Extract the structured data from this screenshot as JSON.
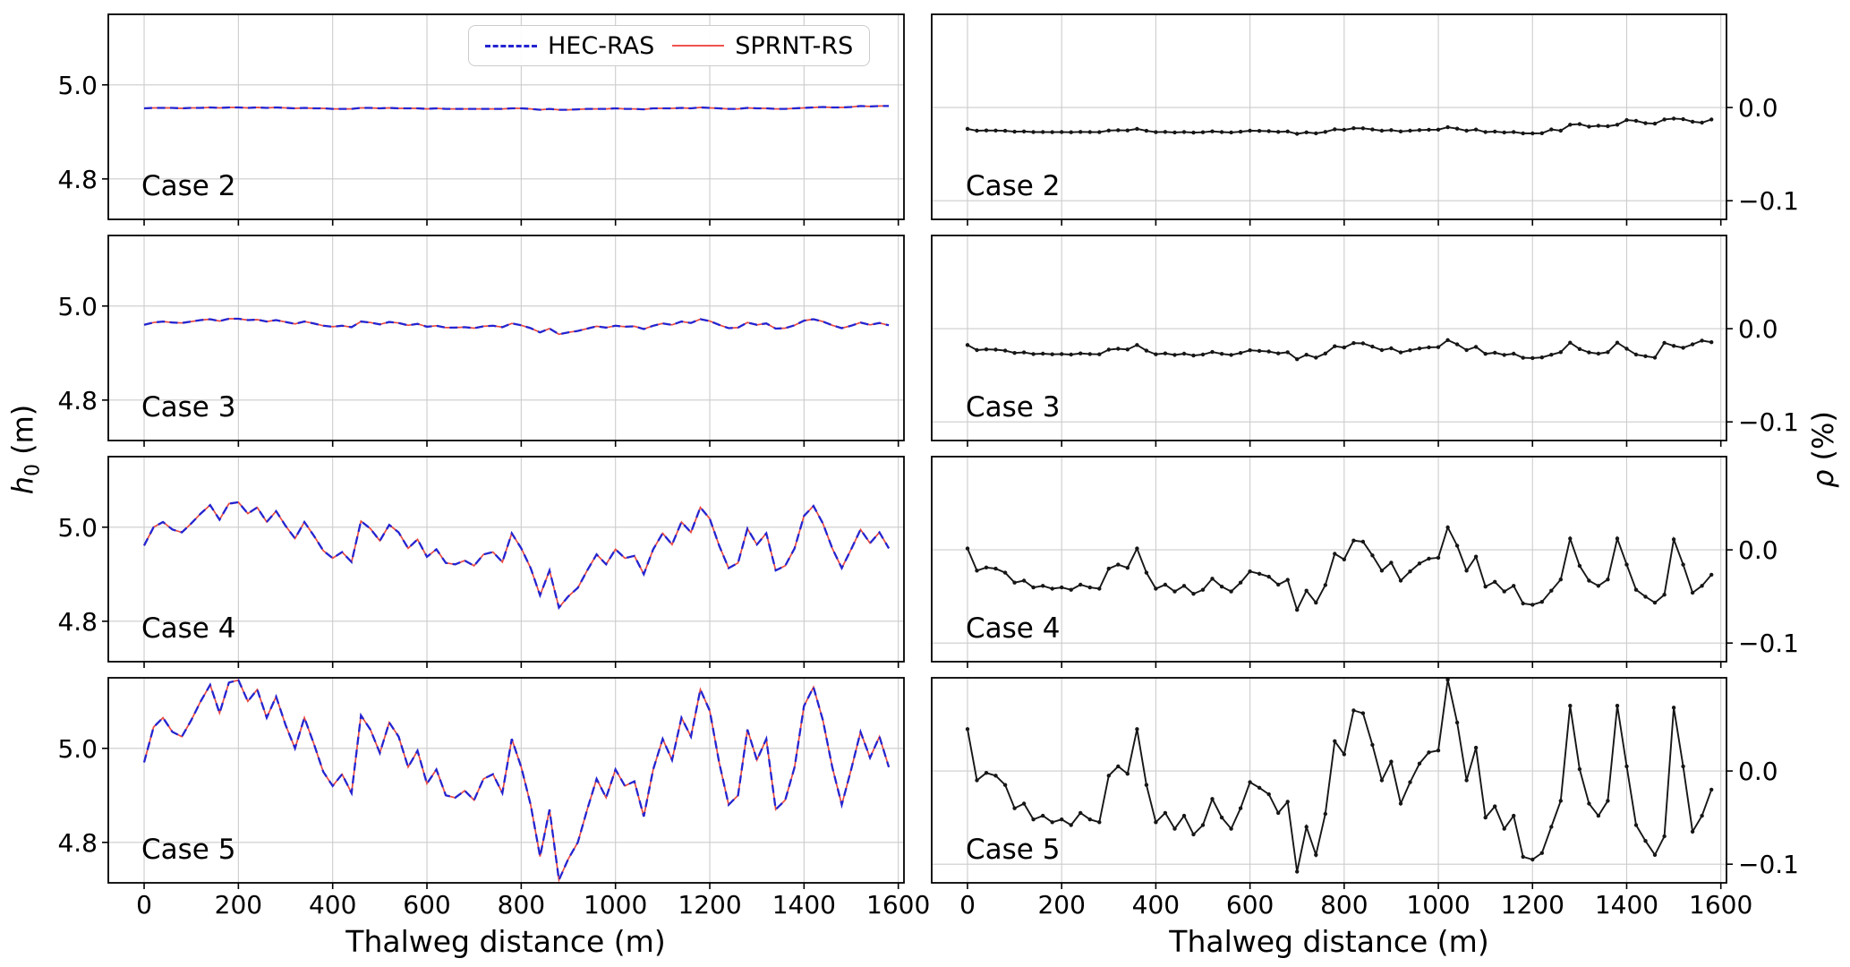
{
  "figure": {
    "background": "#ffffff",
    "ylabel_left": {
      "var": "h",
      "sub": "0",
      "unit": " (m)"
    },
    "ylabel_right": {
      "var": "ρ",
      "unit": " (%)"
    },
    "colors": {
      "hecras": "#2424d0",
      "sprnt": "#e84a42",
      "rho_line": "#161616",
      "grid": "#cccccc",
      "spine": "#000000",
      "text": "#000000"
    }
  },
  "chart_data": {
    "type": "line",
    "layout": "4 rows (Case 2..Case 5) x 2 columns; left column water depth h0 vs thalweg distance (HEC-RAS dashed blue overlapping SPRNT-RS solid red); right column relative difference rho (%) in black with point markers; grid on; legend top-right of first left subplot",
    "xlabel": "Thalweg distance (m)",
    "x_ticks": [
      0,
      200,
      400,
      600,
      800,
      1000,
      1200,
      1400,
      1600
    ],
    "xlim": [
      -76,
      1612
    ],
    "x_m": [
      0,
      20,
      40,
      60,
      80,
      100,
      120,
      140,
      160,
      180,
      200,
      220,
      240,
      260,
      280,
      300,
      320,
      340,
      360,
      380,
      400,
      420,
      440,
      460,
      480,
      500,
      520,
      540,
      560,
      580,
      600,
      620,
      640,
      660,
      680,
      700,
      720,
      740,
      760,
      780,
      800,
      820,
      840,
      860,
      880,
      900,
      920,
      940,
      960,
      980,
      1000,
      1020,
      1040,
      1060,
      1080,
      1100,
      1120,
      1140,
      1160,
      1180,
      1200,
      1220,
      1240,
      1260,
      1280,
      1300,
      1320,
      1340,
      1360,
      1380,
      1400,
      1420,
      1440,
      1460,
      1480,
      1500,
      1520,
      1540,
      1560,
      1580
    ],
    "left": {
      "ylabel": "h0 (m)",
      "y_ticks": [
        5.0,
        4.8
      ],
      "ylim": [
        4.714,
        5.15
      ],
      "legend": [
        {
          "label": "HEC-RAS",
          "color": "#2424d0",
          "style": "dashed"
        },
        {
          "label": "SPRNT-RS",
          "color": "#e84a42",
          "style": "solid"
        }
      ],
      "note": "HEC-RAS and SPRNT-RS water-depth profiles overlap at plot scale; one h0 array per case drives both curves",
      "series": [
        {
          "case": "Case 2",
          "h0_m": [
            4.95,
            4.951,
            4.951,
            4.951,
            4.95,
            4.951,
            4.951,
            4.952,
            4.951,
            4.952,
            4.952,
            4.951,
            4.952,
            4.951,
            4.952,
            4.951,
            4.95,
            4.951,
            4.95,
            4.95,
            4.949,
            4.949,
            4.949,
            4.951,
            4.951,
            4.95,
            4.951,
            4.95,
            4.95,
            4.95,
            4.949,
            4.95,
            4.949,
            4.949,
            4.949,
            4.949,
            4.949,
            4.949,
            4.949,
            4.95,
            4.95,
            4.949,
            4.947,
            4.949,
            4.947,
            4.947,
            4.948,
            4.949,
            4.949,
            4.949,
            4.95,
            4.949,
            4.949,
            4.948,
            4.95,
            4.95,
            4.95,
            4.951,
            4.95,
            4.952,
            4.951,
            4.95,
            4.949,
            4.949,
            4.951,
            4.95,
            4.95,
            4.949,
            4.949,
            4.95,
            4.951,
            4.952,
            4.953,
            4.952,
            4.952,
            4.953,
            4.955,
            4.954,
            4.955,
            4.955
          ]
        },
        {
          "case": "Case 3",
          "h0_m": [
            4.96,
            4.965,
            4.967,
            4.965,
            4.964,
            4.967,
            4.97,
            4.972,
            4.968,
            4.973,
            4.973,
            4.97,
            4.971,
            4.967,
            4.97,
            4.966,
            4.962,
            4.967,
            4.963,
            4.958,
            4.956,
            4.958,
            4.955,
            4.967,
            4.965,
            4.961,
            4.966,
            4.964,
            4.959,
            4.962,
            4.956,
            4.958,
            4.954,
            4.954,
            4.955,
            4.953,
            4.957,
            4.958,
            4.955,
            4.963,
            4.959,
            4.953,
            4.944,
            4.952,
            4.94,
            4.944,
            4.947,
            4.952,
            4.957,
            4.954,
            4.958,
            4.956,
            4.957,
            4.951,
            4.958,
            4.963,
            4.96,
            4.967,
            4.964,
            4.972,
            4.968,
            4.96,
            4.953,
            4.954,
            4.965,
            4.96,
            4.963,
            4.952,
            4.953,
            4.959,
            4.969,
            4.972,
            4.967,
            4.959,
            4.953,
            4.958,
            4.965,
            4.96,
            4.964,
            4.959
          ]
        },
        {
          "case": "Case 4",
          "h0_m": [
            4.961,
            5.0,
            5.011,
            4.995,
            4.989,
            5.008,
            5.029,
            5.047,
            5.016,
            5.05,
            5.053,
            5.029,
            5.042,
            5.011,
            5.034,
            5.003,
            4.976,
            5.011,
            4.982,
            4.95,
            4.934,
            4.947,
            4.926,
            5.013,
            4.997,
            4.971,
            5.005,
            4.989,
            4.955,
            4.974,
            4.937,
            4.953,
            4.924,
            4.921,
            4.929,
            4.918,
            4.942,
            4.947,
            4.926,
            4.987,
            4.955,
            4.913,
            4.855,
            4.908,
            4.829,
            4.853,
            4.871,
            4.908,
            4.942,
            4.921,
            4.953,
            4.934,
            4.939,
            4.9,
            4.953,
            4.987,
            4.963,
            5.011,
            4.989,
            5.042,
            5.018,
            4.961,
            4.913,
            4.924,
            4.997,
            4.963,
            4.987,
            4.908,
            4.918,
            4.955,
            5.024,
            5.045,
            5.008,
            4.955,
            4.913,
            4.953,
            4.995,
            4.966,
            4.989,
            4.955
          ]
        },
        {
          "case": "Case 5",
          "h0_m": [
            4.97,
            5.045,
            5.065,
            5.035,
            5.025,
            5.06,
            5.1,
            5.135,
            5.075,
            5.14,
            5.145,
            5.1,
            5.125,
            5.065,
            5.11,
            5.05,
            5.0,
            5.065,
            5.01,
            4.95,
            4.92,
            4.945,
            4.905,
            5.07,
            5.04,
            4.99,
            5.055,
            5.025,
            4.96,
            4.995,
            4.925,
            4.955,
            4.9,
            4.895,
            4.91,
            4.89,
            4.935,
            4.945,
            4.905,
            5.02,
            4.96,
            4.88,
            4.77,
            4.87,
            4.72,
            4.765,
            4.8,
            4.87,
            4.935,
            4.895,
            4.955,
            4.92,
            4.93,
            4.855,
            4.955,
            5.02,
            4.975,
            5.065,
            5.025,
            5.125,
            5.08,
            4.97,
            4.88,
            4.9,
            5.04,
            4.975,
            5.02,
            4.87,
            4.89,
            4.96,
            5.09,
            5.13,
            5.06,
            4.96,
            4.88,
            4.955,
            5.035,
            4.98,
            5.025,
            4.96
          ]
        }
      ]
    },
    "right": {
      "ylabel": "ρ (%)",
      "y_ticks": [
        0.0,
        -0.1
      ],
      "ylim": [
        -0.12,
        0.1
      ],
      "series": [
        {
          "case": "Case 2",
          "rho_pct": [
            -0.0229,
            -0.0249,
            -0.0246,
            -0.0247,
            -0.025,
            -0.0259,
            -0.0257,
            -0.0263,
            -0.0262,
            -0.0264,
            -0.0263,
            -0.0265,
            -0.0261,
            -0.0263,
            -0.0264,
            -0.0247,
            -0.0243,
            -0.0246,
            -0.0229,
            -0.025,
            -0.0264,
            -0.0261,
            -0.0267,
            -0.0262,
            -0.0269,
            -0.0265,
            -0.0256,
            -0.0263,
            -0.0267,
            -0.0259,
            -0.0249,
            -0.0251,
            -0.0254,
            -0.0261,
            -0.0257,
            -0.0283,
            -0.0266,
            -0.0277,
            -0.0261,
            -0.0234,
            -0.0239,
            -0.0222,
            -0.0223,
            -0.0235,
            -0.0249,
            -0.0242,
            -0.0257,
            -0.0249,
            -0.0242,
            -0.0238,
            -0.0237,
            -0.0211,
            -0.0227,
            -0.0249,
            -0.0236,
            -0.0263,
            -0.0258,
            -0.0267,
            -0.0262,
            -0.0277,
            -0.0278,
            -0.0276,
            -0.0235,
            -0.0248,
            -0.0185,
            -0.0178,
            -0.0205,
            -0.0195,
            -0.0201,
            -0.0185,
            -0.0135,
            -0.0142,
            -0.0168,
            -0.0173,
            -0.0128,
            -0.0118,
            -0.0125,
            -0.0152,
            -0.0162,
            -0.0128
          ]
        },
        {
          "case": "Case 3",
          "rho_pct": [
            -0.0175,
            -0.023,
            -0.0222,
            -0.0225,
            -0.0235,
            -0.026,
            -0.0255,
            -0.0272,
            -0.0268,
            -0.0275,
            -0.0272,
            -0.0278,
            -0.0265,
            -0.0272,
            -0.0275,
            -0.0225,
            -0.0215,
            -0.0223,
            -0.0175,
            -0.0235,
            -0.0275,
            -0.0265,
            -0.0282,
            -0.0268,
            -0.0288,
            -0.0278,
            -0.025,
            -0.027,
            -0.0282,
            -0.026,
            -0.0232,
            -0.0238,
            -0.0245,
            -0.0265,
            -0.0253,
            -0.0328,
            -0.028,
            -0.031,
            -0.0266,
            -0.0188,
            -0.0202,
            -0.0155,
            -0.0158,
            -0.0192,
            -0.023,
            -0.021,
            -0.0255,
            -0.0232,
            -0.0212,
            -0.02,
            -0.0198,
            -0.0122,
            -0.0168,
            -0.023,
            -0.0195,
            -0.027,
            -0.0258,
            -0.0282,
            -0.0268,
            -0.0312,
            -0.0315,
            -0.0308,
            -0.028,
            -0.0252,
            -0.015,
            -0.0218,
            -0.0255,
            -0.0268,
            -0.0252,
            -0.015,
            -0.0215,
            -0.0278,
            -0.0295,
            -0.031,
            -0.0152,
            -0.0185,
            -0.0205,
            -0.0168,
            -0.0128,
            -0.0145
          ]
        },
        {
          "case": "Case 4",
          "rho_pct": [
            0.0014,
            -0.0223,
            -0.0189,
            -0.0202,
            -0.0245,
            -0.0352,
            -0.0331,
            -0.0404,
            -0.0386,
            -0.0417,
            -0.0404,
            -0.0429,
            -0.0374,
            -0.0404,
            -0.0417,
            -0.0202,
            -0.0159,
            -0.0193,
            0.0014,
            -0.0245,
            -0.0417,
            -0.0374,
            -0.0447,
            -0.0386,
            -0.0472,
            -0.0429,
            -0.0309,
            -0.0395,
            -0.0447,
            -0.0352,
            -0.0232,
            -0.0257,
            -0.0288,
            -0.0374,
            -0.0322,
            -0.0644,
            -0.0438,
            -0.0567,
            -0.0378,
            -0.0042,
            -0.0103,
            0.01,
            0.0087,
            -0.006,
            -0.0223,
            -0.0137,
            -0.0331,
            -0.0232,
            -0.0146,
            -0.0094,
            -0.0085,
            0.0241,
            0.0044,
            -0.0223,
            -0.0073,
            -0.0395,
            -0.0343,
            -0.0447,
            -0.0386,
            -0.0576,
            -0.0589,
            -0.0558,
            -0.0438,
            -0.0318,
            0.0121,
            -0.0171,
            -0.0331,
            -0.0386,
            -0.0318,
            0.0121,
            -0.0159,
            -0.0429,
            -0.0503,
            -0.0567,
            -0.0481,
            0.0112,
            -0.0159,
            -0.046,
            -0.0386,
            -0.0267
          ]
        },
        {
          "case": "Case 5",
          "rho_pct": [
            0.045,
            -0.01,
            -0.002,
            -0.005,
            -0.015,
            -0.04,
            -0.035,
            -0.052,
            -0.048,
            -0.055,
            -0.052,
            -0.058,
            -0.045,
            -0.052,
            -0.055,
            -0.005,
            0.005,
            -0.003,
            0.045,
            -0.015,
            -0.055,
            -0.045,
            -0.062,
            -0.048,
            -0.068,
            -0.058,
            -0.03,
            -0.05,
            -0.062,
            -0.04,
            -0.012,
            -0.018,
            -0.025,
            -0.045,
            -0.033,
            -0.108,
            -0.06,
            -0.09,
            -0.046,
            0.032,
            0.018,
            0.065,
            0.062,
            0.028,
            -0.01,
            0.01,
            -0.035,
            -0.012,
            0.008,
            0.02,
            0.022,
            0.098,
            0.052,
            -0.01,
            0.025,
            -0.05,
            -0.038,
            -0.062,
            -0.048,
            -0.092,
            -0.095,
            -0.088,
            -0.06,
            -0.032,
            0.07,
            0.002,
            -0.035,
            -0.048,
            -0.032,
            0.07,
            0.005,
            -0.058,
            -0.075,
            -0.09,
            -0.07,
            0.068,
            0.005,
            -0.065,
            -0.048,
            -0.02
          ]
        }
      ]
    }
  }
}
